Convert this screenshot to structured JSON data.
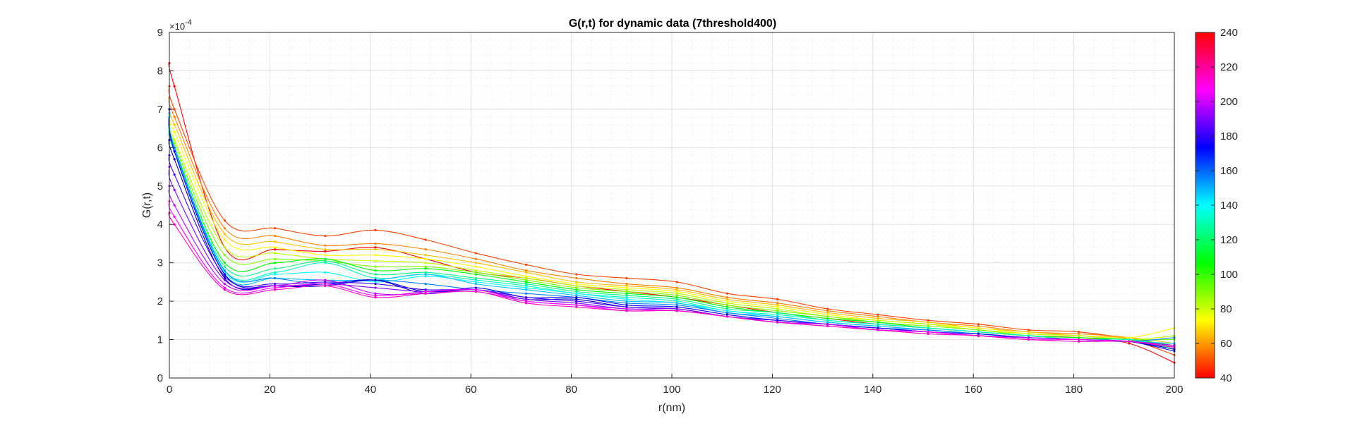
{
  "chart_data": {
    "type": "line",
    "title": "G(r,t) for dynamic data (7threshold400)",
    "xlabel": "r(nm)",
    "ylabel": "G(r,t)",
    "y_exponent_label": "×10",
    "y_exponent_power": "-4",
    "xlim": [
      0,
      200
    ],
    "ylim": [
      0,
      9
    ],
    "xticks": [
      "0",
      "20",
      "40",
      "60",
      "80",
      "100",
      "120",
      "140",
      "160",
      "180",
      "200"
    ],
    "yticks": [
      "0",
      "1",
      "2",
      "3",
      "4",
      "5",
      "6",
      "7",
      "8",
      "9"
    ],
    "grid": true,
    "minor_grid": true,
    "colorbar": {
      "colormap": "hsv-reversed (red at 40 to magenta at 240)",
      "min": 40,
      "max": 240,
      "ticks": [
        "40",
        "60",
        "80",
        "100",
        "120",
        "140",
        "160",
        "180",
        "200",
        "220",
        "240"
      ]
    },
    "x": [
      0,
      1,
      11,
      21,
      31,
      41,
      51,
      61,
      71,
      81,
      91,
      101,
      111,
      121,
      131,
      141,
      151,
      161,
      171,
      181,
      191,
      200
    ],
    "series": [
      {
        "t": 40,
        "color": "#ff0000",
        "values": [
          8.2,
          7.6,
          3.4,
          3.35,
          3.3,
          3.4,
          3.1,
          2.75,
          2.6,
          2.4,
          2.25,
          2.1,
          1.9,
          1.7,
          1.55,
          1.4,
          1.3,
          1.2,
          1.1,
          1.05,
          0.9,
          0.4
        ]
      },
      {
        "t": 50,
        "color": "#ff4000",
        "values": [
          7.6,
          7.0,
          4.1,
          3.9,
          3.7,
          3.85,
          3.6,
          3.25,
          2.95,
          2.7,
          2.6,
          2.5,
          2.2,
          2.05,
          1.8,
          1.65,
          1.5,
          1.4,
          1.25,
          1.2,
          1.0,
          0.6
        ]
      },
      {
        "t": 60,
        "color": "#ff7f00",
        "values": [
          7.3,
          6.8,
          3.9,
          3.7,
          3.45,
          3.5,
          3.35,
          3.1,
          2.8,
          2.6,
          2.45,
          2.35,
          2.1,
          1.95,
          1.75,
          1.6,
          1.45,
          1.35,
          1.2,
          1.15,
          1.05,
          0.8
        ]
      },
      {
        "t": 70,
        "color": "#ffbf00",
        "values": [
          7.0,
          6.6,
          3.75,
          3.55,
          3.35,
          3.35,
          3.2,
          3.0,
          2.75,
          2.5,
          2.4,
          2.3,
          2.05,
          1.9,
          1.7,
          1.55,
          1.45,
          1.3,
          1.2,
          1.1,
          1.05,
          0.9
        ]
      },
      {
        "t": 80,
        "color": "#ffff00",
        "values": [
          6.8,
          6.4,
          3.6,
          3.4,
          3.2,
          3.2,
          3.1,
          2.9,
          2.65,
          2.45,
          2.35,
          2.25,
          2.0,
          1.85,
          1.65,
          1.5,
          1.4,
          1.3,
          1.15,
          1.1,
          1.05,
          1.3
        ]
      },
      {
        "t": 90,
        "color": "#bfff00",
        "values": [
          6.7,
          6.2,
          3.4,
          3.25,
          3.1,
          3.05,
          3.0,
          2.8,
          2.6,
          2.4,
          2.3,
          2.2,
          1.95,
          1.8,
          1.6,
          1.5,
          1.4,
          1.25,
          1.15,
          1.1,
          1.0,
          1.1
        ]
      },
      {
        "t": 100,
        "color": "#7fff00",
        "values": [
          6.6,
          6.1,
          3.2,
          3.1,
          3.05,
          2.9,
          2.9,
          2.75,
          2.55,
          2.35,
          2.25,
          2.15,
          1.9,
          1.75,
          1.6,
          1.45,
          1.35,
          1.25,
          1.1,
          1.05,
          1.0,
          1.0
        ]
      },
      {
        "t": 110,
        "color": "#00ff00",
        "values": [
          6.5,
          6.0,
          3.0,
          3.0,
          3.1,
          2.8,
          2.85,
          2.7,
          2.5,
          2.3,
          2.2,
          2.1,
          1.85,
          1.7,
          1.55,
          1.45,
          1.3,
          1.2,
          1.1,
          1.05,
          1.0,
          0.85
        ]
      },
      {
        "t": 120,
        "color": "#00ff7f",
        "values": [
          6.4,
          5.9,
          2.9,
          2.85,
          3.05,
          2.7,
          2.75,
          2.6,
          2.45,
          2.25,
          2.15,
          2.05,
          1.8,
          1.7,
          1.5,
          1.4,
          1.3,
          1.2,
          1.1,
          1.0,
          1.0,
          0.75
        ]
      },
      {
        "t": 130,
        "color": "#00ffbf",
        "values": [
          6.5,
          5.9,
          2.8,
          2.75,
          3.0,
          2.6,
          2.7,
          2.55,
          2.4,
          2.2,
          2.1,
          2.0,
          1.75,
          1.65,
          1.5,
          1.4,
          1.3,
          1.2,
          1.1,
          1.0,
          1.0,
          0.8
        ]
      },
      {
        "t": 140,
        "color": "#00ffff",
        "values": [
          6.8,
          6.0,
          2.75,
          2.7,
          2.75,
          2.5,
          2.65,
          2.5,
          2.35,
          2.2,
          2.05,
          1.95,
          1.75,
          1.6,
          1.45,
          1.35,
          1.25,
          1.15,
          1.05,
          1.0,
          0.95,
          0.85
        ]
      },
      {
        "t": 150,
        "color": "#00bfff",
        "values": [
          6.9,
          6.0,
          2.7,
          2.6,
          2.55,
          2.55,
          2.7,
          2.45,
          2.3,
          2.15,
          2.0,
          1.95,
          1.7,
          1.6,
          1.45,
          1.35,
          1.25,
          1.15,
          1.05,
          1.0,
          0.95,
          0.9
        ]
      },
      {
        "t": 160,
        "color": "#007fff",
        "values": [
          7.0,
          6.0,
          2.8,
          2.6,
          2.45,
          2.55,
          2.45,
          2.3,
          2.2,
          2.1,
          1.95,
          1.9,
          1.7,
          1.55,
          1.4,
          1.3,
          1.25,
          1.15,
          1.05,
          1.0,
          0.95,
          1.05
        ]
      },
      {
        "t": 170,
        "color": "#0000ff",
        "values": [
          7.0,
          5.9,
          2.7,
          2.4,
          2.45,
          2.55,
          2.2,
          2.35,
          2.1,
          2.1,
          1.9,
          1.85,
          1.65,
          1.5,
          1.4,
          1.3,
          1.2,
          1.15,
          1.05,
          1.0,
          0.95,
          0.7
        ]
      },
      {
        "t": 180,
        "color": "#0000bf",
        "values": [
          6.2,
          5.7,
          2.6,
          2.4,
          2.4,
          2.55,
          2.25,
          2.3,
          2.05,
          2.05,
          1.85,
          1.8,
          1.6,
          1.5,
          1.4,
          1.3,
          1.2,
          1.1,
          1.05,
          1.0,
          0.95,
          0.75
        ]
      },
      {
        "t": 190,
        "color": "#3f00ff",
        "values": [
          5.8,
          5.3,
          2.65,
          2.45,
          2.5,
          2.45,
          2.3,
          2.3,
          2.1,
          2.0,
          1.85,
          1.8,
          1.6,
          1.5,
          1.4,
          1.3,
          1.2,
          1.1,
          1.05,
          1.0,
          0.95,
          0.8
        ]
      },
      {
        "t": 200,
        "color": "#7f00ff",
        "values": [
          5.5,
          4.9,
          2.55,
          2.4,
          2.45,
          2.35,
          2.25,
          2.3,
          2.05,
          1.95,
          1.8,
          1.8,
          1.6,
          1.45,
          1.4,
          1.25,
          1.2,
          1.1,
          1.05,
          1.0,
          0.95,
          0.85
        ]
      },
      {
        "t": 210,
        "color": "#bf00ff",
        "values": [
          5.0,
          4.5,
          2.45,
          2.4,
          2.55,
          2.2,
          2.2,
          2.25,
          2.0,
          1.9,
          1.8,
          1.75,
          1.6,
          1.45,
          1.4,
          1.25,
          1.2,
          1.1,
          1.05,
          1.0,
          0.95,
          0.85
        ]
      },
      {
        "t": 220,
        "color": "#ff00ff",
        "values": [
          4.6,
          4.2,
          2.35,
          2.35,
          2.45,
          2.15,
          2.25,
          2.3,
          2.0,
          1.9,
          1.75,
          1.75,
          1.6,
          1.45,
          1.35,
          1.25,
          1.2,
          1.1,
          1.0,
          1.0,
          0.95,
          0.8
        ]
      },
      {
        "t": 230,
        "color": "#ff00bf",
        "values": [
          4.3,
          4.0,
          2.3,
          2.3,
          2.4,
          2.1,
          2.2,
          2.25,
          1.95,
          1.85,
          1.75,
          1.75,
          1.6,
          1.45,
          1.35,
          1.25,
          1.15,
          1.1,
          1.0,
          0.95,
          0.95,
          0.8
        ]
      }
    ]
  }
}
